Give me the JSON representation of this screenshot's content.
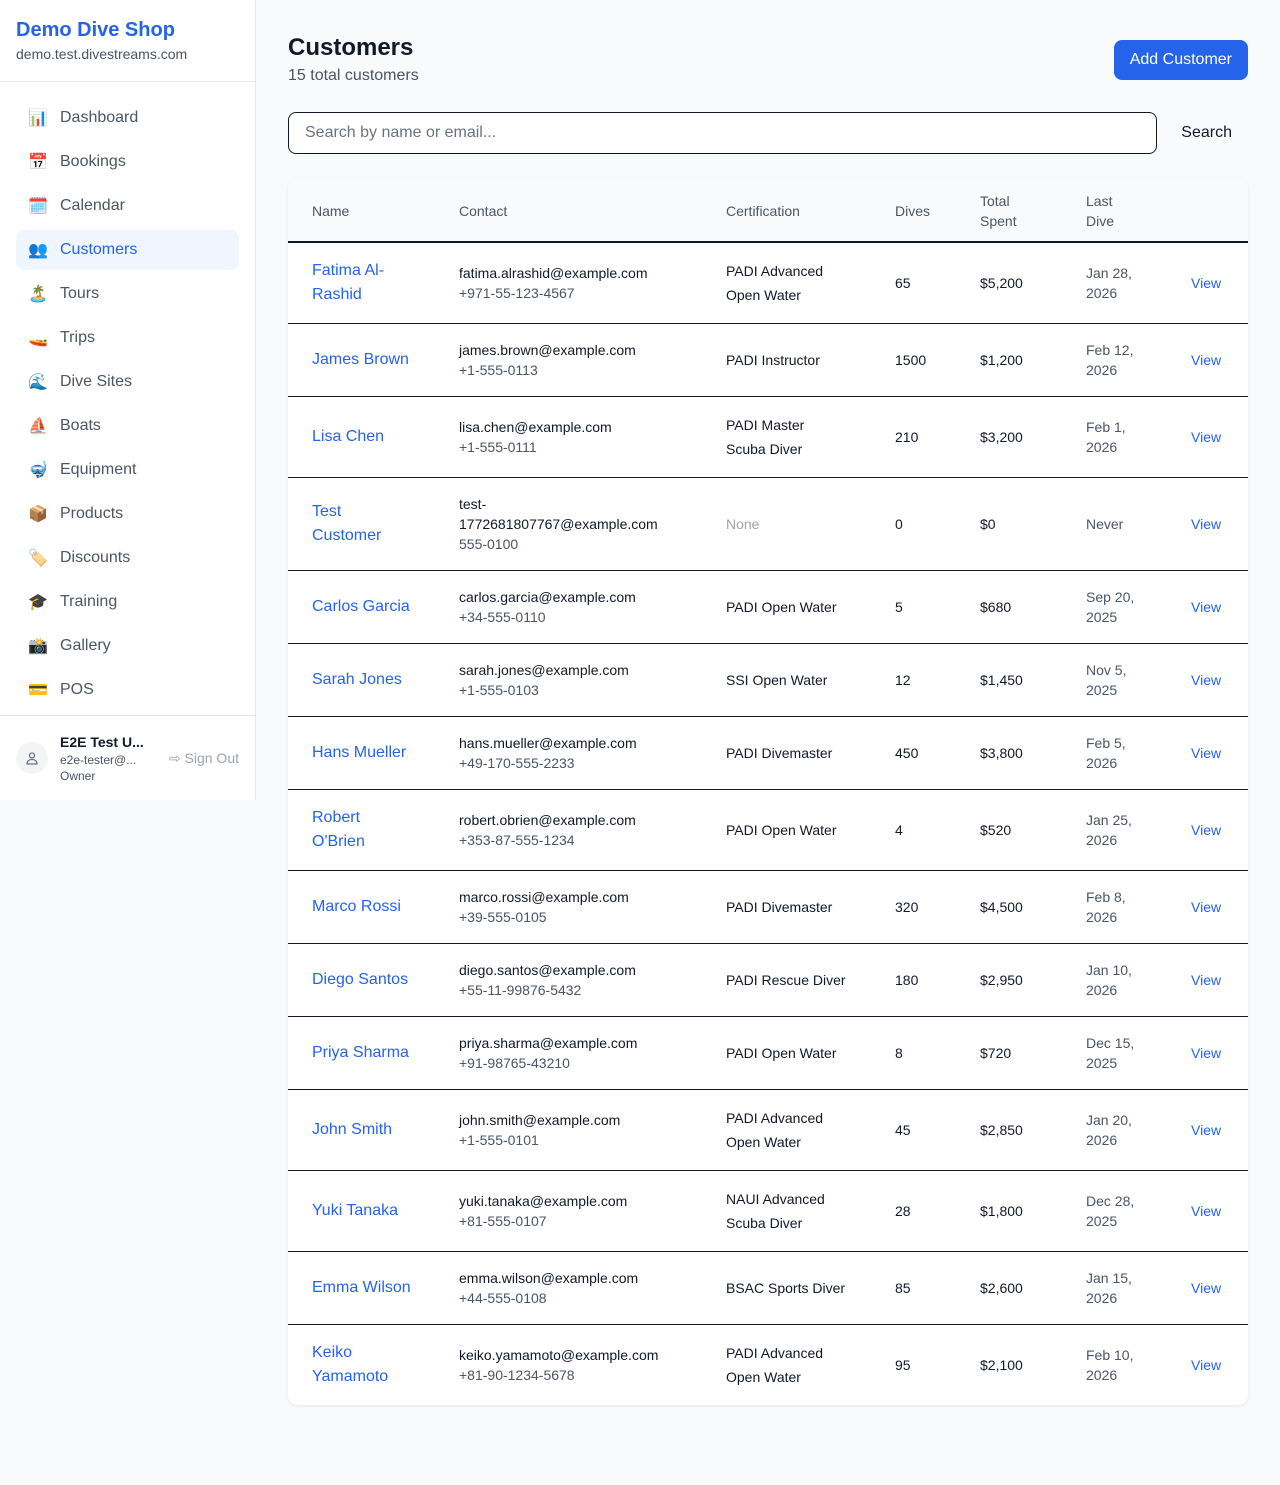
{
  "sidebar": {
    "brand": "Demo Dive Shop",
    "domain": "demo.test.divestreams.com",
    "items": [
      {
        "label": "Dashboard",
        "icon": "📊",
        "name": "chart-icon"
      },
      {
        "label": "Bookings",
        "icon": "📅",
        "name": "calendar-date-icon"
      },
      {
        "label": "Calendar",
        "icon": "🗓️",
        "name": "calendar-icon"
      },
      {
        "label": "Customers",
        "icon": "👥",
        "name": "people-icon",
        "active": true
      },
      {
        "label": "Tours",
        "icon": "🏝️",
        "name": "island-icon"
      },
      {
        "label": "Trips",
        "icon": "🚤",
        "name": "boat-icon"
      },
      {
        "label": "Dive Sites",
        "icon": "🌊",
        "name": "wave-icon"
      },
      {
        "label": "Boats",
        "icon": "⛵",
        "name": "sailboat-icon"
      },
      {
        "label": "Equipment",
        "icon": "🤿",
        "name": "diving-mask-icon"
      },
      {
        "label": "Products",
        "icon": "📦",
        "name": "package-icon"
      },
      {
        "label": "Discounts",
        "icon": "🏷️",
        "name": "tag-icon"
      },
      {
        "label": "Training",
        "icon": "🎓",
        "name": "graduation-cap-icon"
      },
      {
        "label": "Gallery",
        "icon": "📸",
        "name": "camera-icon"
      },
      {
        "label": "POS",
        "icon": "💳",
        "name": "credit-card-icon"
      }
    ],
    "user": {
      "name": "E2E Test U...",
      "email": "e2e-tester@...",
      "role": "Owner",
      "signout": "Sign Out"
    }
  },
  "header": {
    "title": "Customers",
    "subtitle": "15 total customers",
    "add_label": "Add Customer"
  },
  "search": {
    "placeholder": "Search by name or email...",
    "button": "Search"
  },
  "table": {
    "columns": [
      "Name",
      "Contact",
      "Certification",
      "Dives",
      "Total Spent",
      "Last Dive"
    ],
    "view_label": "View",
    "rows": [
      [
        "Fatima Al-Rashid",
        "fatima.alrashid@example.com",
        "+971-55-123-4567",
        "PADI Advanced Open Water",
        "65",
        "$5,200",
        "Jan 28, 2026"
      ],
      [
        "James Brown",
        "james.brown@example.com",
        "+1-555-0113",
        "PADI Instructor",
        "1500",
        "$1,200",
        "Feb 12, 2026"
      ],
      [
        "Lisa Chen",
        "lisa.chen@example.com",
        "+1-555-0111",
        "PADI Master Scuba Diver",
        "210",
        "$3,200",
        "Feb 1, 2026"
      ],
      [
        "Test Customer",
        "test-1772681807767@example.com",
        "555-0100",
        "None",
        "0",
        "$0",
        "Never"
      ],
      [
        "Carlos Garcia",
        "carlos.garcia@example.com",
        "+34-555-0110",
        "PADI Open Water",
        "5",
        "$680",
        "Sep 20, 2025"
      ],
      [
        "Sarah Jones",
        "sarah.jones@example.com",
        "+1-555-0103",
        "SSI Open Water",
        "12",
        "$1,450",
        "Nov 5, 2025"
      ],
      [
        "Hans Mueller",
        "hans.mueller@example.com",
        "+49-170-555-2233",
        "PADI Divemaster",
        "450",
        "$3,800",
        "Feb 5, 2026"
      ],
      [
        "Robert O'Brien",
        "robert.obrien@example.com",
        "+353-87-555-1234",
        "PADI Open Water",
        "4",
        "$520",
        "Jan 25, 2026"
      ],
      [
        "Marco Rossi",
        "marco.rossi@example.com",
        "+39-555-0105",
        "PADI Divemaster",
        "320",
        "$4,500",
        "Feb 8, 2026"
      ],
      [
        "Diego Santos",
        "diego.santos@example.com",
        "+55-11-99876-5432",
        "PADI Rescue Diver",
        "180",
        "$2,950",
        "Jan 10, 2026"
      ],
      [
        "Priya Sharma",
        "priya.sharma@example.com",
        "+91-98765-43210",
        "PADI Open Water",
        "8",
        "$720",
        "Dec 15, 2025"
      ],
      [
        "John Smith",
        "john.smith@example.com",
        "+1-555-0101",
        "PADI Advanced Open Water",
        "45",
        "$2,850",
        "Jan 20, 2026"
      ],
      [
        "Yuki Tanaka",
        "yuki.tanaka@example.com",
        "+81-555-0107",
        "NAUI Advanced Scuba Diver",
        "28",
        "$1,800",
        "Dec 28, 2025"
      ],
      [
        "Emma Wilson",
        "emma.wilson@example.com",
        "+44-555-0108",
        "BSAC Sports Diver",
        "85",
        "$2,600",
        "Jan 15, 2026"
      ],
      [
        "Keiko Yamamoto",
        "keiko.yamamoto@example.com",
        "+81-90-1234-5678",
        "PADI Advanced Open Water",
        "95",
        "$2,100",
        "Feb 10, 2026"
      ]
    ]
  },
  "colors": {
    "accent": "#2563eb",
    "active_bg": "#eff6ff"
  }
}
